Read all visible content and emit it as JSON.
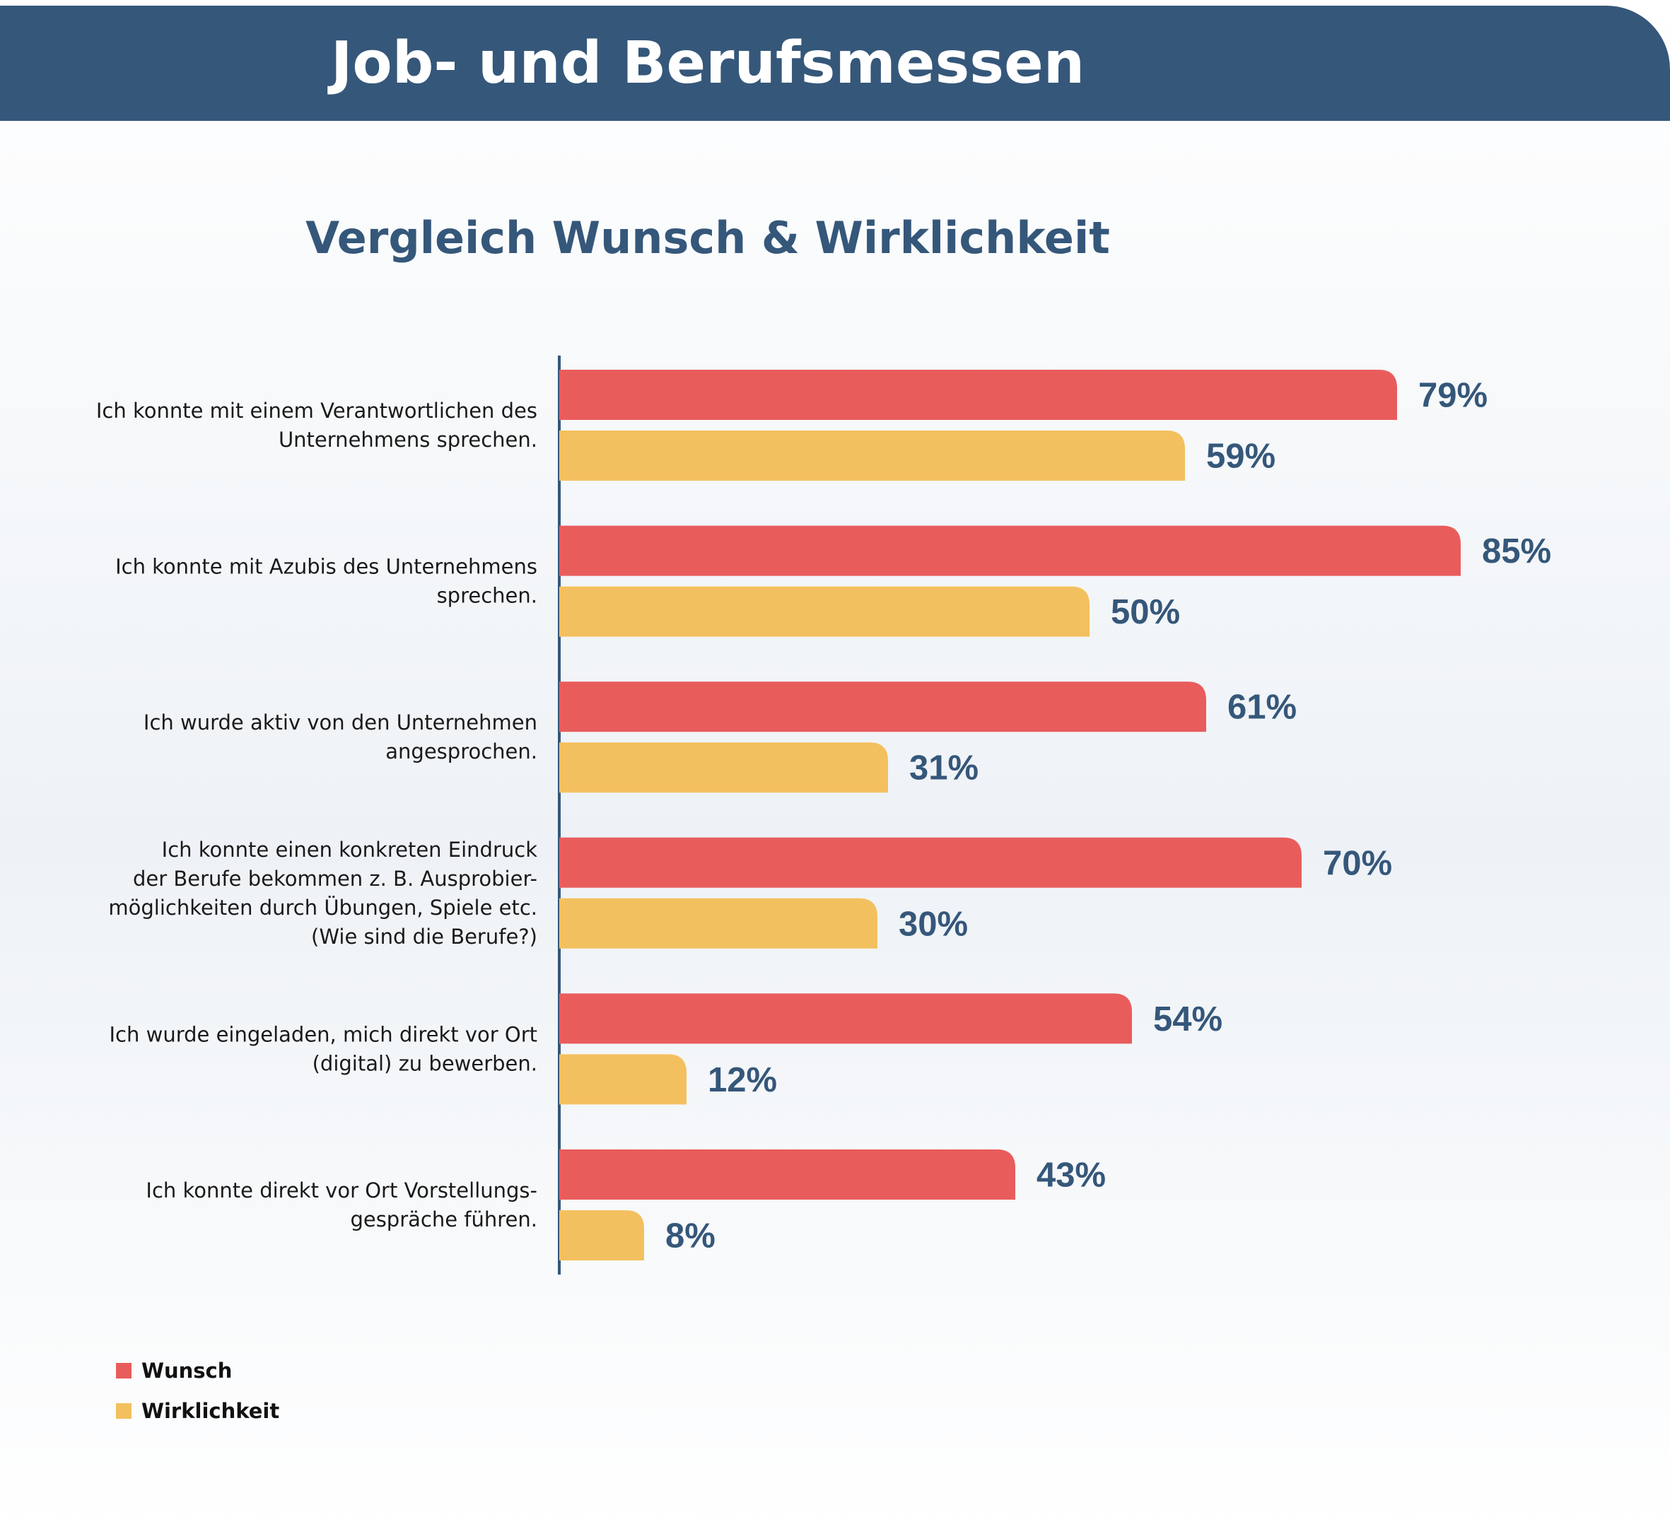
{
  "header": {
    "title": "Job- und Berufsmessen"
  },
  "colors": {
    "header_bg": "#35577a",
    "wunsch": "#e95c5c",
    "wirklichkeit": "#f3c05f",
    "value_text": "#35577a",
    "axis": "#35577a"
  },
  "chart_data": {
    "type": "bar",
    "orientation": "horizontal",
    "title": "Vergleich Wunsch & Wirklichkeit",
    "categories": [
      "Ich konnte mit einem Verantwortlichen des Unternehmens sprechen.",
      "Ich konnte mit Azubis des Unternehmens sprechen.",
      "Ich wurde aktiv von den Unternehmen angesprochen.",
      "Ich konnte einen konkreten Eindruck der Berufe bekommen z. B. Ausprobier-möglichkeiten durch Übungen, Spiele etc. (Wie sind die Berufe?)",
      "Ich wurde eingeladen, mich direkt vor Ort (digital) zu bewerben.",
      "Ich konnte direkt vor Ort Vorstellungs-gespräche führen."
    ],
    "category_lines": [
      [
        "Ich konnte mit einem Verantwortlichen des",
        "Unternehmens sprechen."
      ],
      [
        "Ich konnte mit Azubis des Unternehmens",
        "sprechen."
      ],
      [
        "Ich wurde aktiv von den Unternehmen",
        "angesprochen."
      ],
      [
        "Ich konnte einen konkreten Eindruck",
        "der Berufe bekommen z. B. Ausprobier-",
        "möglichkeiten durch Übungen, Spiele etc.",
        "(Wie sind die Berufe?)"
      ],
      [
        "Ich wurde eingeladen, mich direkt vor Ort",
        "(digital) zu bewerben."
      ],
      [
        "Ich konnte direkt vor Ort Vorstellungs-",
        "gespräche führen."
      ]
    ],
    "series": [
      {
        "name": "Wunsch",
        "values": [
          79,
          85,
          61,
          70,
          54,
          43
        ],
        "labels": [
          "79%",
          "85%",
          "61%",
          "70%",
          "54%",
          "43%"
        ]
      },
      {
        "name": "Wirklichkeit",
        "values": [
          59,
          50,
          31,
          30,
          12,
          8
        ],
        "labels": [
          "59%",
          "50%",
          "31%",
          "30%",
          "12%",
          "8%"
        ]
      }
    ],
    "xlim": [
      0,
      100
    ],
    "grid": false,
    "legend_position": "bottom-left"
  },
  "legend": {
    "items": [
      {
        "label": "Wunsch"
      },
      {
        "label": "Wirklichkeit"
      }
    ]
  }
}
